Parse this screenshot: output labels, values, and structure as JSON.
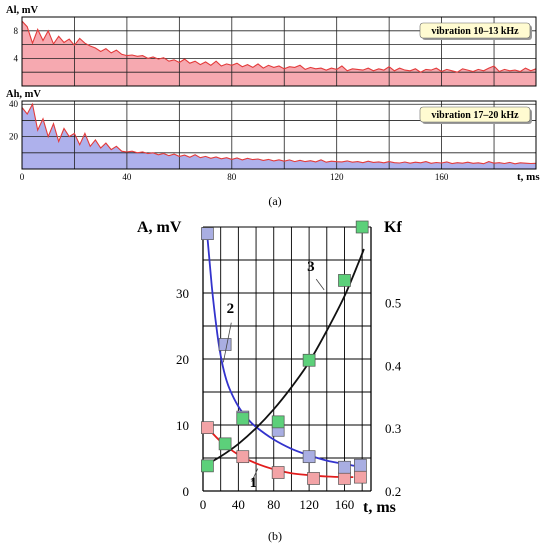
{
  "chart_data": [
    {
      "panel": "a",
      "type": "area",
      "series_color": "#e33b3b",
      "fill_color": "#f6a9b0",
      "charts": [
        {
          "name": "",
          "ylabel": "Al, mV",
          "ylim": [
            0,
            10
          ],
          "yticks": [
            2,
            4,
            6,
            8
          ],
          "yticks_labeled": [
            4,
            8
          ],
          "annotation": "vibration  10–13 kHz",
          "x": [
            0,
            2,
            4,
            6,
            8,
            10,
            12,
            14,
            16,
            18,
            20,
            22,
            24,
            26,
            28,
            30,
            32,
            34,
            36,
            38,
            40,
            42,
            44,
            46,
            48,
            50,
            52,
            54,
            56,
            58,
            60,
            62,
            64,
            66,
            68,
            70,
            72,
            74,
            76,
            78,
            80,
            82,
            84,
            86,
            88,
            90,
            92,
            94,
            96,
            98,
            100,
            102,
            104,
            106,
            108,
            110,
            112,
            114,
            116,
            118,
            120,
            122,
            124,
            126,
            128,
            130,
            132,
            134,
            136,
            138,
            140,
            142,
            144,
            146,
            148,
            150,
            152,
            154,
            156,
            158,
            160,
            162,
            164,
            166,
            168,
            170,
            172,
            174,
            176,
            178,
            180,
            182,
            184,
            186,
            188,
            190,
            192,
            194,
            196
          ],
          "y": [
            9.4,
            8.6,
            6.2,
            8.2,
            6.6,
            8.0,
            6.1,
            7.2,
            6.3,
            6.8,
            5.9,
            6.9,
            6.2,
            5.8,
            5.5,
            5.0,
            5.4,
            4.8,
            5.2,
            4.6,
            4.4,
            4.5,
            4.3,
            4.4,
            4.0,
            4.2,
            3.9,
            4.1,
            3.6,
            3.8,
            3.4,
            3.9,
            3.3,
            3.6,
            3.1,
            3.5,
            3.0,
            3.6,
            2.9,
            3.2,
            3.0,
            3.3,
            2.8,
            3.1,
            2.7,
            3.2,
            2.6,
            3.0,
            2.7,
            2.9,
            2.5,
            2.8,
            2.7,
            3.0,
            2.4,
            2.7,
            2.5,
            2.6,
            2.3,
            2.6,
            2.4,
            2.9,
            2.2,
            2.5,
            2.4,
            2.3,
            2.6,
            2.2,
            2.5,
            2.3,
            2.8,
            2.2,
            2.6,
            2.3,
            2.2,
            2.5,
            2.0,
            2.4,
            2.3,
            2.6,
            2.1,
            2.4,
            2.2,
            2.0,
            2.5,
            2.3,
            2.1,
            2.4,
            2.2,
            2.6,
            2.9,
            2.1,
            2.4,
            2.2,
            2.3,
            2.1,
            2.6,
            2.2,
            2.5
          ]
        },
        {
          "name": "",
          "ylabel": "Ah, mV",
          "ylim": [
            0,
            42
          ],
          "yticks": [
            10,
            20,
            30,
            40
          ],
          "yticks_labeled": [
            20,
            40
          ],
          "annotation": "vibration  17–20 kHz",
          "x": [
            0,
            2,
            4,
            6,
            8,
            10,
            12,
            14,
            16,
            18,
            20,
            22,
            24,
            26,
            28,
            30,
            32,
            34,
            36,
            38,
            40,
            42,
            44,
            46,
            48,
            50,
            52,
            54,
            56,
            58,
            60,
            62,
            64,
            66,
            68,
            70,
            72,
            74,
            76,
            78,
            80,
            82,
            84,
            86,
            88,
            90,
            92,
            94,
            96,
            98,
            100,
            102,
            104,
            106,
            108,
            110,
            112,
            114,
            116,
            118,
            120,
            122,
            124,
            126,
            128,
            130,
            132,
            134,
            136,
            138,
            140,
            142,
            144,
            146,
            148,
            150,
            152,
            154,
            156,
            158,
            160,
            162,
            164,
            166,
            168,
            170,
            172,
            174,
            176,
            178,
            180,
            182,
            184,
            186,
            188,
            190,
            192,
            194,
            196
          ],
          "y": [
            38,
            34,
            40,
            24,
            31,
            20,
            28,
            17,
            25,
            20,
            22,
            15,
            22,
            14,
            18,
            13,
            16,
            12,
            14,
            11,
            10.5,
            11,
            10,
            10.5,
            9.5,
            10,
            8.8,
            9.6,
            8.2,
            9.2,
            7.8,
            8.6,
            7.2,
            8.8,
            7.0,
            7.8,
            6.6,
            7.4,
            6.3,
            7.0,
            5.9,
            6.8,
            5.6,
            6.6,
            5.8,
            6.2,
            5.3,
            5.9,
            5.0,
            5.7,
            4.8,
            5.6,
            4.6,
            5.4,
            4.6,
            5.1,
            4.4,
            5.6,
            4.2,
            4.8,
            4.5,
            4.4,
            5.0,
            4.2,
            4.6,
            3.9,
            4.8,
            4.1,
            4.4,
            3.8,
            4.6,
            3.9,
            3.7,
            4.3,
            3.6,
            4.2,
            3.8,
            4.6,
            3.5,
            4.0,
            3.7,
            4.4,
            3.4,
            3.9,
            3.6,
            4.2,
            3.5,
            3.8,
            3.3,
            4.6,
            3.6,
            3.9,
            3.4,
            4.1,
            3.2,
            3.8,
            3.6,
            3.4,
            3.5
          ]
        }
      ],
      "xlim": [
        0,
        196
      ],
      "xticks": [
        0,
        40,
        80,
        120,
        160
      ],
      "xlabel": "t, ms",
      "caption": "(a)"
    },
    {
      "panel": "b",
      "type": "scatter",
      "ylabel_left": "A, mV",
      "ylabel_right": "Kf",
      "xlabel": "t, ms",
      "xlim": [
        0,
        190
      ],
      "xticks": [
        0,
        40,
        80,
        120,
        160
      ],
      "xgrid": [
        0,
        20,
        40,
        60,
        80,
        100,
        120,
        140,
        160,
        180
      ],
      "ylim_left": [
        0,
        40
      ],
      "yticks_left": [
        0,
        10,
        20,
        30
      ],
      "ygrid_left": [
        0,
        5,
        10,
        15,
        20,
        25,
        30,
        35,
        40
      ],
      "ylim_right": [
        0.2,
        0.62
      ],
      "yticks_right": [
        0.2,
        0.3,
        0.4,
        0.5
      ],
      "series": [
        {
          "name": "1",
          "axis": "left",
          "marker_color": "#f3a3a6",
          "curve_color": "#e21d1d",
          "x": [
            5,
            45,
            85,
            125,
            160,
            178
          ],
          "y": [
            9.6,
            5.2,
            2.8,
            1.9,
            1.9,
            2.1
          ],
          "curve_x": [
            5,
            20,
            40,
            60,
            80,
            100,
            120,
            140,
            160,
            170
          ],
          "curve_y": [
            9.6,
            7.5,
            5.5,
            4.2,
            3.3,
            2.7,
            2.4,
            2.2,
            2.1,
            2.1
          ]
        },
        {
          "name": "2",
          "axis": "left",
          "marker_color": "#a9aee2",
          "curve_color": "#3333cc",
          "x": [
            5,
            25,
            45,
            85,
            120,
            160,
            178
          ],
          "y": [
            39,
            22.2,
            11.2,
            9.2,
            5.2,
            3.6,
            3.9
          ],
          "curve_x": [
            5,
            10,
            15,
            20,
            25,
            30,
            40,
            50,
            60,
            80,
            100,
            120,
            140,
            160,
            172
          ],
          "curve_y": [
            38.5,
            31,
            25,
            20.5,
            17.5,
            15.5,
            12.8,
            11,
            9.7,
            7.8,
            6.4,
            5.4,
            4.6,
            4.1,
            3.8
          ]
        },
        {
          "name": "3",
          "axis": "right",
          "marker_color": "#5cd07a",
          "curve_color": "#111111",
          "x": [
            5,
            25,
            45,
            85,
            120,
            160,
            180
          ],
          "y": [
            0.24,
            0.275,
            0.315,
            0.31,
            0.408,
            0.535,
            0.62
          ],
          "curve_x": [
            5,
            20,
            40,
            60,
            80,
            100,
            120,
            140,
            160,
            175,
            182
          ],
          "curve_y": [
            0.243,
            0.255,
            0.275,
            0.3,
            0.33,
            0.365,
            0.405,
            0.455,
            0.51,
            0.56,
            0.585
          ]
        }
      ],
      "caption": "(b)"
    }
  ]
}
